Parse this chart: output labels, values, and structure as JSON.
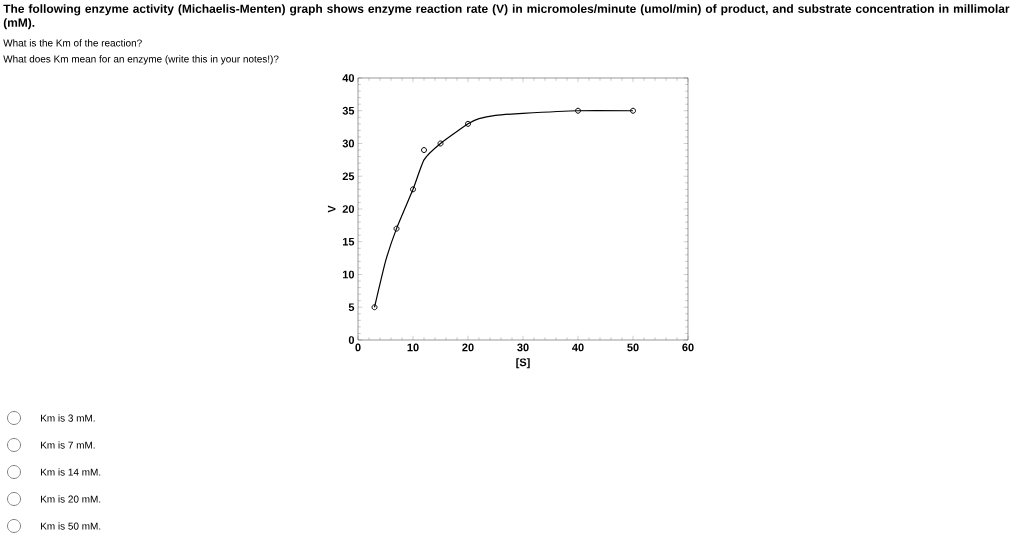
{
  "chart_data": {
    "type": "scatter",
    "title": "The following enzyme activity (Michaelis-Menten) graph shows enzyme reaction rate (V) in micromoles/minute (umol/min) of product, and substrate concentration in millimolar (mM).",
    "xlabel": "[S]",
    "ylabel": "V",
    "series": [
      {
        "type": "line",
        "color": "#000000",
        "marker": "none",
        "x": [
          3,
          5,
          7,
          10,
          12,
          15,
          20,
          22,
          25,
          30,
          40,
          50
        ],
        "values": [
          5,
          12,
          17,
          23,
          27.5,
          30,
          33,
          33.8,
          34.3,
          34.6,
          35,
          35
        ]
      },
      {
        "color": "#000000",
        "marker": "circle",
        "x": [
          3,
          7,
          10,
          12,
          15,
          20,
          40,
          50
        ],
        "values": [
          5,
          17,
          23,
          29,
          30,
          33,
          35,
          35
        ]
      }
    ],
    "xlim": [
      0,
      60
    ],
    "xticks": [
      0,
      10,
      20,
      30,
      40,
      50,
      60
    ],
    "ylim": [
      0,
      40
    ],
    "yticks": [
      0,
      5,
      10,
      15,
      20,
      25,
      30,
      35,
      40
    ],
    "grid": false,
    "annotations": [
      "What is the Km of the reaction?",
      "What does Km mean for an enzyme (write this in your notes!)?",
      "Km is 3 mM.",
      "Km is 7 mM.",
      "Km is 14 mM.",
      "Km is 20 mM.",
      "Km is 50 mM."
    ]
  }
}
